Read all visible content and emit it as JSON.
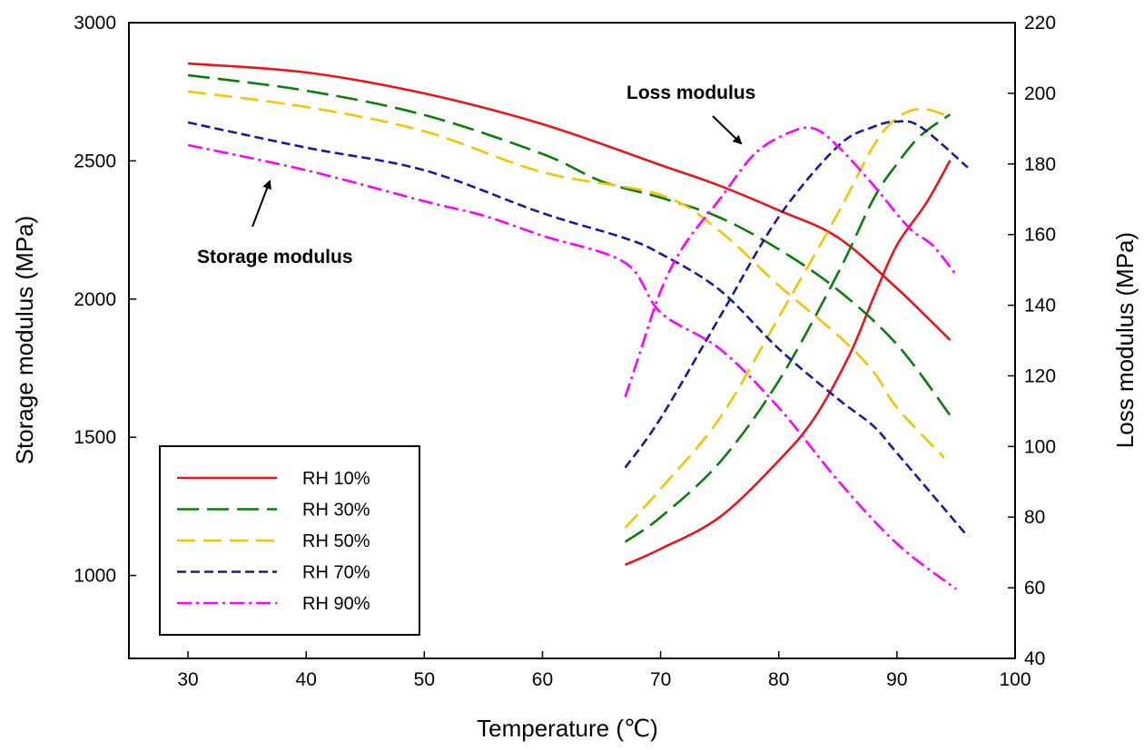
{
  "chart_data": {
    "type": "line",
    "xlabel": "Temperature (℃)",
    "ylabel": "Storage  modulus (MPa)",
    "y2label": "Loss  modulus (MPa)",
    "xlim": [
      25,
      100
    ],
    "ylim": [
      700,
      3000
    ],
    "y2lim": [
      40,
      220
    ],
    "xticks": [
      30,
      40,
      50,
      60,
      70,
      80,
      90,
      100
    ],
    "yticks": [
      1000,
      1500,
      2000,
      2500,
      3000
    ],
    "y2ticks": [
      40,
      60,
      80,
      100,
      120,
      140,
      160,
      180,
      200,
      220
    ],
    "grid": false,
    "legend_position": "bottom-left",
    "annotations": [
      {
        "text": "Loss modulus",
        "points_to": "loss modulus curves"
      },
      {
        "text": "Storage modulus",
        "points_to": "storage modulus curves"
      }
    ],
    "series": [
      {
        "name": "RH 10%",
        "color": "#e8141e",
        "style": "solid",
        "storage": {
          "x": [
            30,
            40,
            50,
            60,
            70,
            75,
            80,
            85,
            90,
            94.5
          ],
          "y": [
            2852,
            2820,
            2744,
            2633,
            2485,
            2410,
            2321,
            2223,
            2039,
            1852
          ]
        },
        "loss": {
          "x": [
            67,
            70,
            75,
            80,
            83,
            86,
            88,
            90,
            92.5,
            94.5
          ],
          "y": [
            66.5,
            71,
            80,
            96,
            108,
            126,
            142,
            157,
            169,
            181
          ]
        }
      },
      {
        "name": "RH 30%",
        "color": "#0a7d0a",
        "style": "long-dash",
        "storage": {
          "x": [
            30,
            40,
            50,
            60,
            65,
            70,
            75,
            80,
            85,
            90,
            94.5
          ],
          "y": [
            2810,
            2754,
            2666,
            2525,
            2426,
            2367,
            2295,
            2180,
            2033,
            1836,
            1580
          ]
        },
        "loss": {
          "x": [
            67,
            70,
            75,
            80,
            85,
            88,
            90,
            92,
            94.5
          ],
          "y": [
            73,
            80,
            95.5,
            118.6,
            149,
            170,
            180,
            188,
            194
          ]
        }
      },
      {
        "name": "RH 50%",
        "color": "#f5c400",
        "style": "dash",
        "storage": {
          "x": [
            30,
            40,
            50,
            60,
            70,
            75,
            80,
            85,
            88,
            90,
            94
          ],
          "y": [
            2751,
            2695,
            2607,
            2459,
            2377,
            2246,
            2049,
            1869,
            1738,
            1607,
            1426
          ]
        },
        "loss": {
          "x": [
            67,
            70,
            75,
            80,
            85,
            88,
            90,
            92,
            94
          ],
          "y": [
            77,
            88,
            108,
            136.6,
            166,
            185,
            193,
            195.6,
            194
          ]
        }
      },
      {
        "name": "RH 70%",
        "color": "#1a1aa0",
        "style": "short-dash",
        "storage": {
          "x": [
            30,
            40,
            50,
            60,
            67,
            70,
            75,
            80,
            85,
            88,
            90,
            96
          ],
          "y": [
            2639,
            2548,
            2466,
            2311,
            2220,
            2164,
            2033,
            1820,
            1639,
            1541,
            1443,
            1141
          ]
        },
        "loss": {
          "x": [
            67,
            70,
            75,
            80,
            85,
            88,
            90,
            92,
            96
          ],
          "y": [
            94,
            108,
            136.6,
            165,
            185,
            190.5,
            192,
            190.5,
            179
          ]
        }
      },
      {
        "name": "RH 90%",
        "color": "#ff00ff",
        "style": "dash-dot",
        "storage": {
          "x": [
            30,
            40,
            50,
            55,
            60,
            67,
            70,
            75,
            80,
            85,
            90,
            95
          ],
          "y": [
            2557,
            2466,
            2354,
            2302,
            2229,
            2131,
            1951,
            1820,
            1607,
            1344,
            1115,
            951
          ]
        },
        "loss": {
          "x": [
            67,
            68,
            70,
            72,
            75,
            78,
            81,
            83,
            85,
            88,
            91,
            93,
            95
          ],
          "y": [
            114,
            124,
            144,
            157,
            170,
            183,
            189,
            190,
            185,
            174,
            162,
            157,
            148.6
          ]
        }
      }
    ]
  }
}
